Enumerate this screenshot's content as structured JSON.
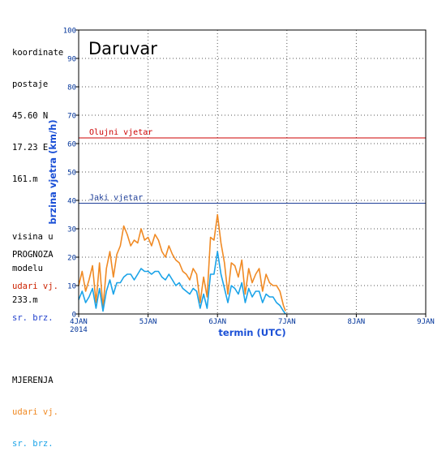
{
  "station_info": {
    "coord_label_1": "koordinate",
    "coord_label_2": "postaje",
    "lat": "45.60 N",
    "lon": "17.23 E",
    "elevation": "161.m",
    "model_label_1": "visina u",
    "model_label_2": "modelu",
    "model_height": "233.m"
  },
  "legend": {
    "forecast_title": "PROGNOZA",
    "forecast_gusts": "udari vj.",
    "forecast_mean": "sr. brz.",
    "measured_title": "MJERENJA",
    "measured_gusts": "udari vj.",
    "measured_mean": "sr. brz."
  },
  "colors": {
    "forecast_gusts": "#cc2200",
    "forecast_mean": "#1f3fcc",
    "measured_gusts": "#f08a24",
    "measured_mean": "#1aa3e8",
    "storm_line": "#cc0000",
    "strong_line": "#1f3f99"
  },
  "chart_data": {
    "type": "line",
    "title": "Daruvar",
    "ylabel": "brzina vjetra (km/h)",
    "xlabel": "termin (UTC)",
    "ylim": [
      0,
      100
    ],
    "xlim": [
      0,
      5
    ],
    "yticks": [
      "0",
      "10",
      "20",
      "30",
      "40",
      "50",
      "60",
      "70",
      "80",
      "90",
      "100"
    ],
    "xticks": [
      {
        "x": 0,
        "label": "4JAN",
        "sub": "2014"
      },
      {
        "x": 1,
        "label": "5JAN",
        "sub": ""
      },
      {
        "x": 2,
        "label": "6JAN",
        "sub": ""
      },
      {
        "x": 3,
        "label": "7JAN",
        "sub": ""
      },
      {
        "x": 4,
        "label": "8JAN",
        "sub": ""
      },
      {
        "x": 5,
        "label": "9JAN",
        "sub": ""
      }
    ],
    "grid": true,
    "reference_lines": [
      {
        "name": "Olujni vjetar",
        "value": 62
      },
      {
        "name": "Jaki vjetar",
        "value": 39
      }
    ],
    "series": [
      {
        "name": "udari vj.",
        "x": [
          0,
          0.05,
          0.1,
          0.15,
          0.2,
          0.25,
          0.3,
          0.35,
          0.4,
          0.45,
          0.5,
          0.55,
          0.6,
          0.65,
          0.7,
          0.75,
          0.8,
          0.85,
          0.9,
          0.95,
          1.0,
          1.05,
          1.1,
          1.15,
          1.2,
          1.25,
          1.3,
          1.35,
          1.4,
          1.45,
          1.5,
          1.55,
          1.6,
          1.65,
          1.7,
          1.75,
          1.8,
          1.85,
          1.9,
          1.95,
          2.0,
          2.05,
          2.1,
          2.15,
          2.2,
          2.25,
          2.3,
          2.35,
          2.4,
          2.45,
          2.5,
          2.55,
          2.6,
          2.65,
          2.7,
          2.75,
          2.8,
          2.85,
          2.9,
          2.95,
          2.98
        ],
        "values": [
          10,
          15,
          8,
          12,
          17,
          4,
          18,
          2,
          16,
          22,
          13,
          21,
          24,
          31,
          28,
          24,
          26,
          25,
          30,
          26,
          27,
          24,
          28,
          26,
          22,
          20,
          24,
          21,
          19,
          18,
          15,
          14,
          12,
          16,
          14,
          4,
          13,
          6,
          27,
          26,
          35,
          25,
          18,
          7,
          18,
          17,
          13,
          19,
          7,
          16,
          11,
          14,
          16,
          8,
          14,
          11,
          10,
          10,
          8,
          3,
          1
        ]
      },
      {
        "name": "sr. brz.",
        "x": [
          0,
          0.05,
          0.1,
          0.15,
          0.2,
          0.25,
          0.3,
          0.35,
          0.4,
          0.45,
          0.5,
          0.55,
          0.6,
          0.65,
          0.7,
          0.75,
          0.8,
          0.85,
          0.9,
          0.95,
          1.0,
          1.05,
          1.1,
          1.15,
          1.2,
          1.25,
          1.3,
          1.35,
          1.4,
          1.45,
          1.5,
          1.55,
          1.6,
          1.65,
          1.7,
          1.75,
          1.8,
          1.85,
          1.9,
          1.95,
          2.0,
          2.05,
          2.1,
          2.15,
          2.2,
          2.25,
          2.3,
          2.35,
          2.4,
          2.45,
          2.5,
          2.55,
          2.6,
          2.65,
          2.7,
          2.75,
          2.8,
          2.85,
          2.9,
          2.95,
          2.98
        ],
        "values": [
          5,
          8,
          4,
          6,
          9,
          2,
          9,
          1,
          8,
          12,
          7,
          11,
          11,
          13,
          14,
          14,
          12,
          14,
          16,
          15,
          15,
          14,
          15,
          15,
          13,
          12,
          14,
          12,
          10,
          11,
          9,
          8,
          7,
          9,
          8,
          2,
          7,
          2,
          14,
          14,
          22,
          14,
          9,
          4,
          10,
          9,
          7,
          11,
          4,
          9,
          6,
          8,
          8,
          4,
          7,
          6,
          6,
          4,
          3,
          1,
          0
        ]
      }
    ]
  }
}
